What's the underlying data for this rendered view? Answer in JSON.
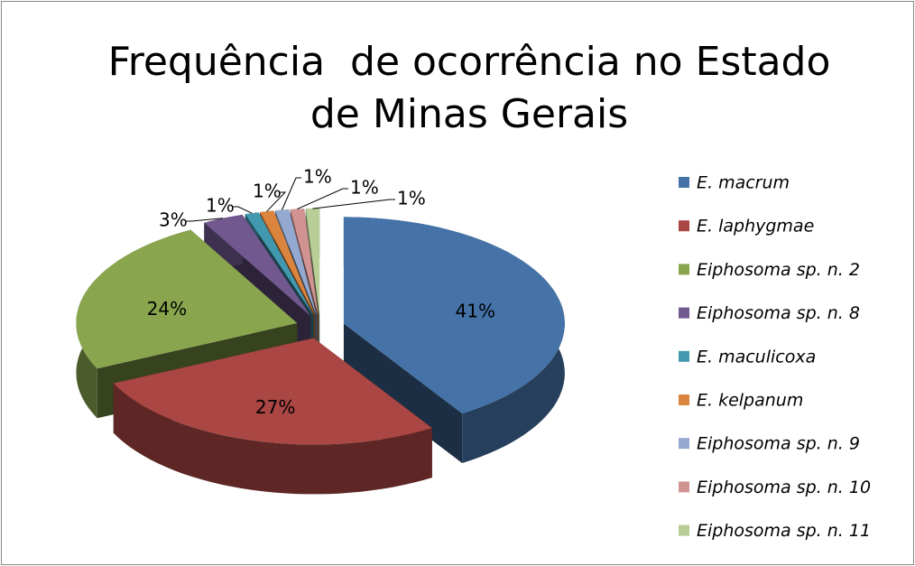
{
  "chart_data": {
    "type": "pie",
    "title": "Frequência  de ocorrência no Estado de Minas Gerais",
    "categories": [
      "E. macrum",
      "E. laphygmae",
      "Eiphosoma sp. n. 2",
      "Eiphosoma sp. n. 8",
      "E. maculicoxa",
      "E. kelpanum",
      "Eiphosoma sp. n. 9",
      "Eiphosoma sp. n. 10",
      "Eiphosoma sp. n. 11"
    ],
    "values": [
      41,
      27,
      24,
      3,
      1,
      1,
      1,
      1,
      1
    ],
    "value_labels": [
      "41%",
      "27%",
      "24%",
      "3%",
      "1%",
      "1%",
      "1%",
      "1%",
      "1%"
    ],
    "colors": [
      "#4572a7",
      "#aa4643",
      "#89a54e",
      "#71588f",
      "#4198af",
      "#db843d",
      "#93a9cf",
      "#d19392",
      "#b9cd96"
    ],
    "legend": "right"
  }
}
